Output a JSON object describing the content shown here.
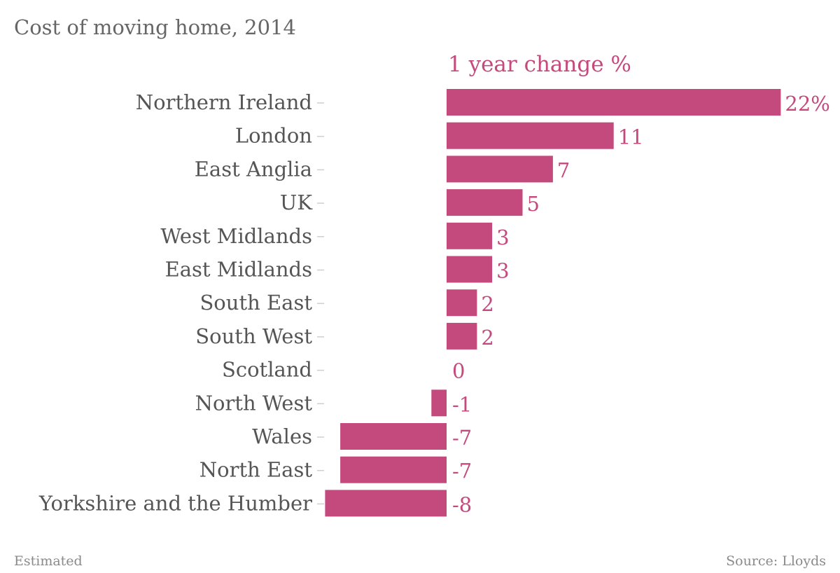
{
  "chart_data": {
    "type": "bar",
    "orientation": "horizontal",
    "title": "Cost of moving home, 2014",
    "series": [
      {
        "name": "1 year change %",
        "values": [
          22,
          11,
          7,
          5,
          3,
          3,
          2,
          2,
          0,
          -1,
          -7,
          -7,
          -8
        ]
      }
    ],
    "categories": [
      "Northern Ireland",
      "London",
      "East Anglia",
      "UK",
      "West Midlands",
      "East Midlands",
      "South East",
      "South West",
      "Scotland",
      "North West",
      "Wales",
      "North East",
      "Yorkshire and the Humber"
    ],
    "value_labels": [
      "22%",
      "11",
      "7",
      "5",
      "3",
      "3",
      "2",
      "2",
      "0",
      "-1",
      "-7",
      "-7",
      "-8"
    ],
    "xlim": [
      -8,
      22
    ],
    "grid": false,
    "bar_color": "#c44a7e"
  },
  "footer": {
    "note": "Estimated",
    "source": "Source: Lloyds"
  }
}
